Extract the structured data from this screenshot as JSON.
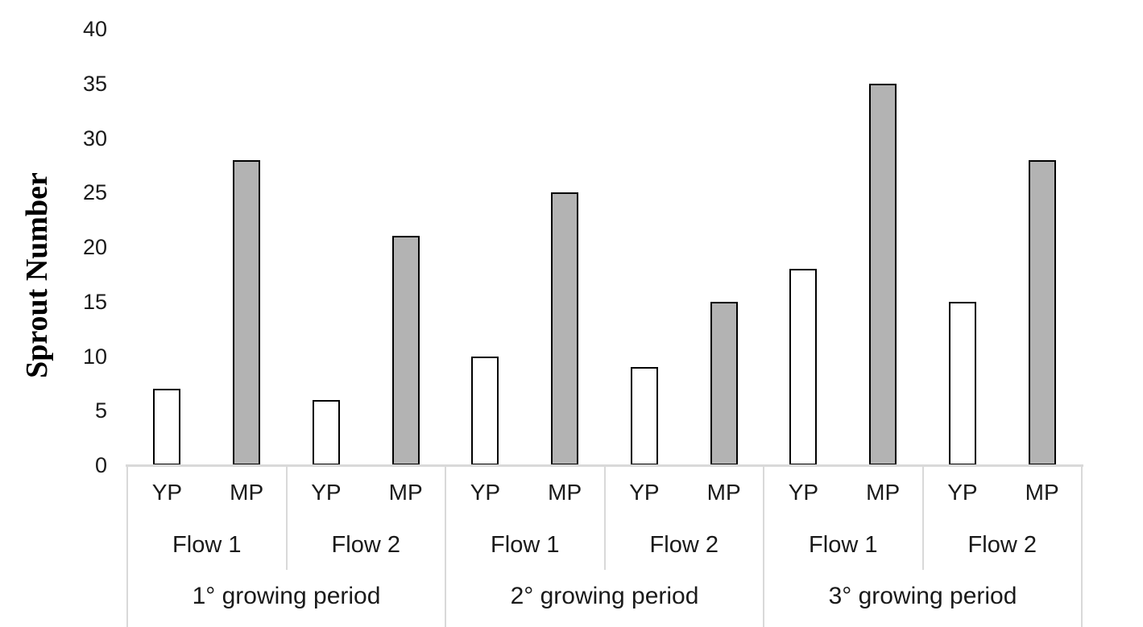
{
  "chart_data": {
    "type": "bar",
    "title": "",
    "xlabel": "",
    "ylabel": "Sprout Number",
    "ylim": [
      0,
      40
    ],
    "yticks": [
      0,
      5,
      10,
      15,
      20,
      25,
      30,
      35,
      40
    ],
    "grid": false,
    "legend_position": "none",
    "series": [
      {
        "name": "YP",
        "fill": "#ffffff",
        "border": "#000000"
      },
      {
        "name": "MP",
        "fill": "#b3b3b3",
        "border": "#000000"
      }
    ],
    "groups": [
      {
        "period": "1° growing period",
        "flows": [
          {
            "flow": "Flow 1",
            "values": {
              "YP": 7,
              "MP": 28
            }
          },
          {
            "flow": "Flow 2",
            "values": {
              "YP": 6,
              "MP": 21
            }
          }
        ]
      },
      {
        "period": "2° growing period",
        "flows": [
          {
            "flow": "Flow 1",
            "values": {
              "YP": 10,
              "MP": 25
            }
          },
          {
            "flow": "Flow 2",
            "values": {
              "YP": 9,
              "MP": 15
            }
          }
        ]
      },
      {
        "period": "3° growing period",
        "flows": [
          {
            "flow": "Flow 1",
            "values": {
              "YP": 18,
              "MP": 35
            }
          },
          {
            "flow": "Flow 2",
            "values": {
              "YP": 15,
              "MP": 28
            }
          }
        ]
      }
    ]
  },
  "colors": {
    "background": "#ffffff",
    "axis_table_line": "#d9d9d9",
    "text": "#1a1a1a",
    "bar_border": "#000000"
  }
}
